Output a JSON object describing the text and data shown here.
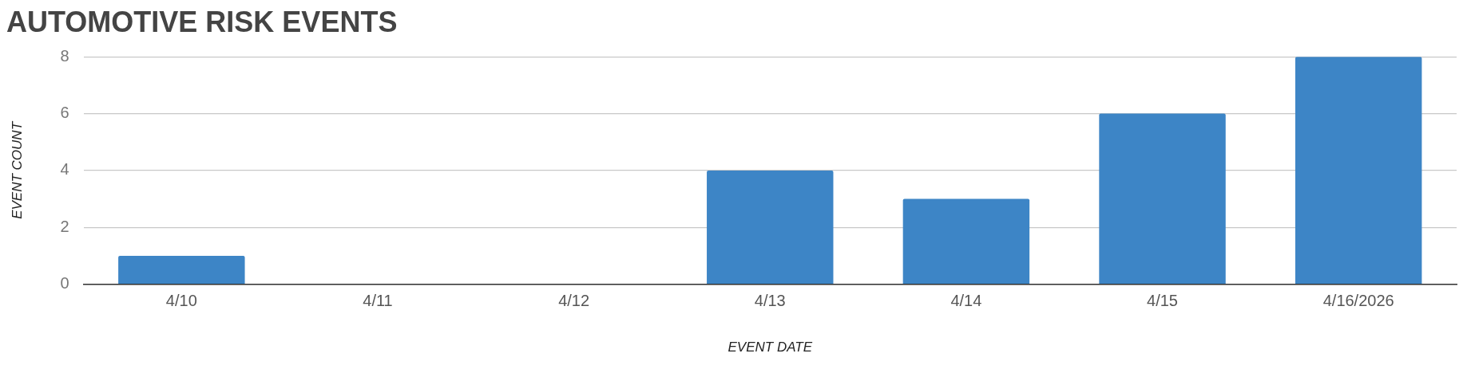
{
  "chart_data": {
    "type": "bar",
    "title": "AUTOMOTIVE RISK EVENTS",
    "xlabel": "EVENT DATE",
    "ylabel": "EVENT COUNT",
    "categories": [
      "4/10",
      "4/11",
      "4/12",
      "4/13",
      "4/14",
      "4/15",
      "4/16/2026"
    ],
    "values": [
      1,
      0,
      0,
      4,
      3,
      6,
      8
    ],
    "color": "#3d85c6",
    "ylim": [
      0,
      8
    ],
    "yticks": [
      0,
      2,
      4,
      6,
      8
    ],
    "grid": "y",
    "legend": false
  }
}
